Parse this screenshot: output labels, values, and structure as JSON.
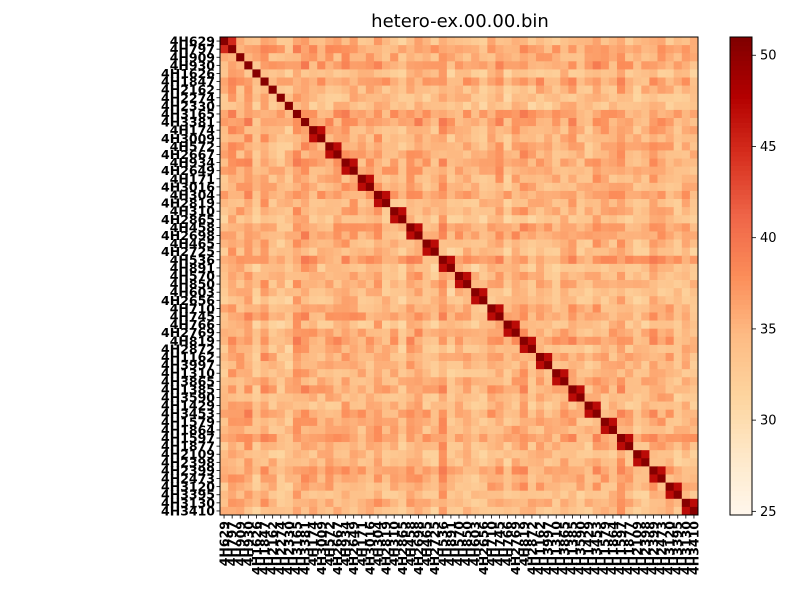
{
  "chart_data": {
    "type": "heatmap",
    "title": "hetero-ex.00.00.bin",
    "xlabel": "",
    "ylabel": "",
    "labels": [
      "4H629",
      "4H797",
      "4H909",
      "4H930",
      "4H1626",
      "4H1847",
      "4H2162",
      "4H2274",
      "4H2330",
      "4H3165",
      "4H3381",
      "4H174",
      "4H3009",
      "4H572",
      "4H2667",
      "4H934",
      "4H2649",
      "4H171",
      "4H3016",
      "4H304",
      "4H2819",
      "4H310",
      "4H2865",
      "4H458",
      "4H2698",
      "4H465",
      "4H2725",
      "4H536",
      "4H891",
      "4H570",
      "4H850",
      "4H603",
      "4H2656",
      "4H710",
      "4H745",
      "4H766",
      "4H2769",
      "4H819",
      "4H2872",
      "4H1162",
      "4H3997",
      "4H1310",
      "4H3865",
      "4H1385",
      "4H3590",
      "4H1429",
      "4H3453",
      "4H1579",
      "4H1864",
      "4H1597",
      "4H1877",
      "4H2109",
      "4H2398",
      "4H2399",
      "4H2473",
      "4H3120",
      "4H3395",
      "4H3130",
      "4H3410"
    ],
    "colorbar": {
      "min": 24.8,
      "max": 51,
      "ticks": [
        25,
        30,
        35,
        40,
        45,
        50
      ],
      "colormap": "OrRd"
    },
    "diagonal_value": 50.5,
    "block_pairs": [
      [
        11,
        12
      ],
      [
        13,
        14
      ],
      [
        15,
        16
      ],
      [
        17,
        18
      ],
      [
        19,
        20
      ],
      [
        21,
        22
      ],
      [
        23,
        24
      ],
      [
        25,
        26
      ],
      [
        27,
        28
      ],
      [
        29,
        30
      ],
      [
        31,
        32
      ],
      [
        33,
        34
      ],
      [
        35,
        36
      ],
      [
        37,
        38
      ],
      [
        39,
        40
      ],
      [
        41,
        42
      ],
      [
        43,
        44
      ],
      [
        45,
        46
      ],
      [
        47,
        48
      ],
      [
        49,
        50
      ],
      [
        51,
        52
      ],
      [
        53,
        54
      ],
      [
        55,
        56
      ],
      [
        57,
        58
      ]
    ],
    "pair_value": 47,
    "base_range": [
      30,
      40
    ],
    "seed": 7
  }
}
